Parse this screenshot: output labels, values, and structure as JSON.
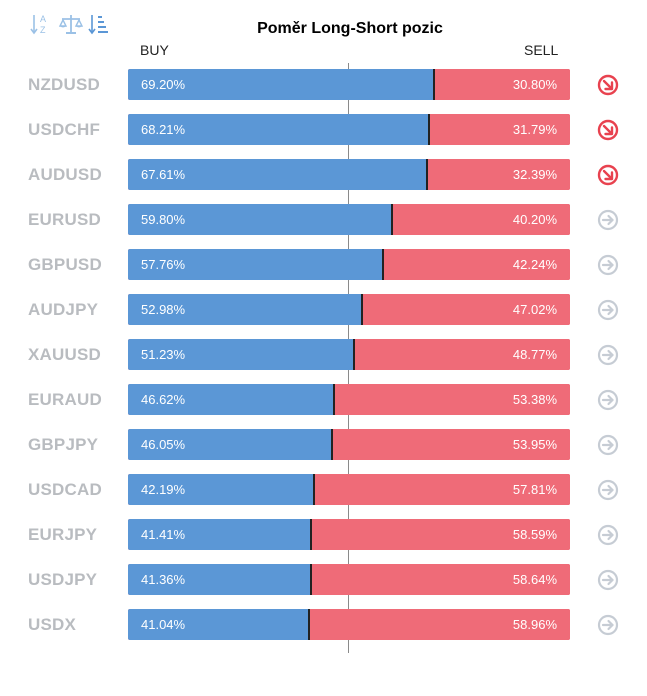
{
  "title": "Poměr Long-Short pozic",
  "buy_label": "BUY",
  "sell_label": "SELL",
  "toolbar": [
    {
      "name": "sort-alpha-icon"
    },
    {
      "name": "balance-scale-icon"
    },
    {
      "name": "sort-numeric-icon"
    }
  ],
  "colors": {
    "buy": "#5b97d6",
    "sell": "#ef6b78",
    "arrow_down": "#e8424f",
    "arrow_neutral": "#c6ccd4"
  },
  "chart_data": {
    "type": "bar",
    "title": "Poměr Long-Short pozic",
    "categories": [
      "NZDUSD",
      "USDCHF",
      "AUDUSD",
      "EURUSD",
      "GBPUSD",
      "AUDJPY",
      "XAUUSD",
      "EURAUD",
      "GBPJPY",
      "USDCAD",
      "EURJPY",
      "USDJPY",
      "USDX"
    ],
    "series": [
      {
        "name": "BUY",
        "values": [
          69.2,
          68.21,
          67.61,
          59.8,
          57.76,
          52.98,
          51.23,
          46.62,
          46.05,
          42.19,
          41.41,
          41.36,
          41.04
        ]
      },
      {
        "name": "SELL",
        "values": [
          30.8,
          31.79,
          32.39,
          40.2,
          42.24,
          47.02,
          48.77,
          53.38,
          53.95,
          57.81,
          58.59,
          58.64,
          58.96
        ]
      }
    ],
    "rows": [
      {
        "symbol": "NZDUSD",
        "buy": "69.20%",
        "sell": "30.80%",
        "signal": "down-right-arrow-icon"
      },
      {
        "symbol": "USDCHF",
        "buy": "68.21%",
        "sell": "31.79%",
        "signal": "down-right-arrow-icon"
      },
      {
        "symbol": "AUDUSD",
        "buy": "67.61%",
        "sell": "32.39%",
        "signal": "down-right-arrow-icon"
      },
      {
        "symbol": "EURUSD",
        "buy": "59.80%",
        "sell": "40.20%",
        "signal": "right-arrow-icon"
      },
      {
        "symbol": "GBPUSD",
        "buy": "57.76%",
        "sell": "42.24%",
        "signal": "right-arrow-icon"
      },
      {
        "symbol": "AUDJPY",
        "buy": "52.98%",
        "sell": "47.02%",
        "signal": "right-arrow-icon"
      },
      {
        "symbol": "XAUUSD",
        "buy": "51.23%",
        "sell": "48.77%",
        "signal": "right-arrow-icon"
      },
      {
        "symbol": "EURAUD",
        "buy": "46.62%",
        "sell": "53.38%",
        "signal": "right-arrow-icon"
      },
      {
        "symbol": "GBPJPY",
        "buy": "46.05%",
        "sell": "53.95%",
        "signal": "right-arrow-icon"
      },
      {
        "symbol": "USDCAD",
        "buy": "42.19%",
        "sell": "57.81%",
        "signal": "right-arrow-icon"
      },
      {
        "symbol": "EURJPY",
        "buy": "41.41%",
        "sell": "58.59%",
        "signal": "right-arrow-icon"
      },
      {
        "symbol": "USDJPY",
        "buy": "41.36%",
        "sell": "58.64%",
        "signal": "right-arrow-icon"
      },
      {
        "symbol": "USDX",
        "buy": "41.04%",
        "sell": "58.96%",
        "signal": "right-arrow-icon"
      }
    ]
  }
}
